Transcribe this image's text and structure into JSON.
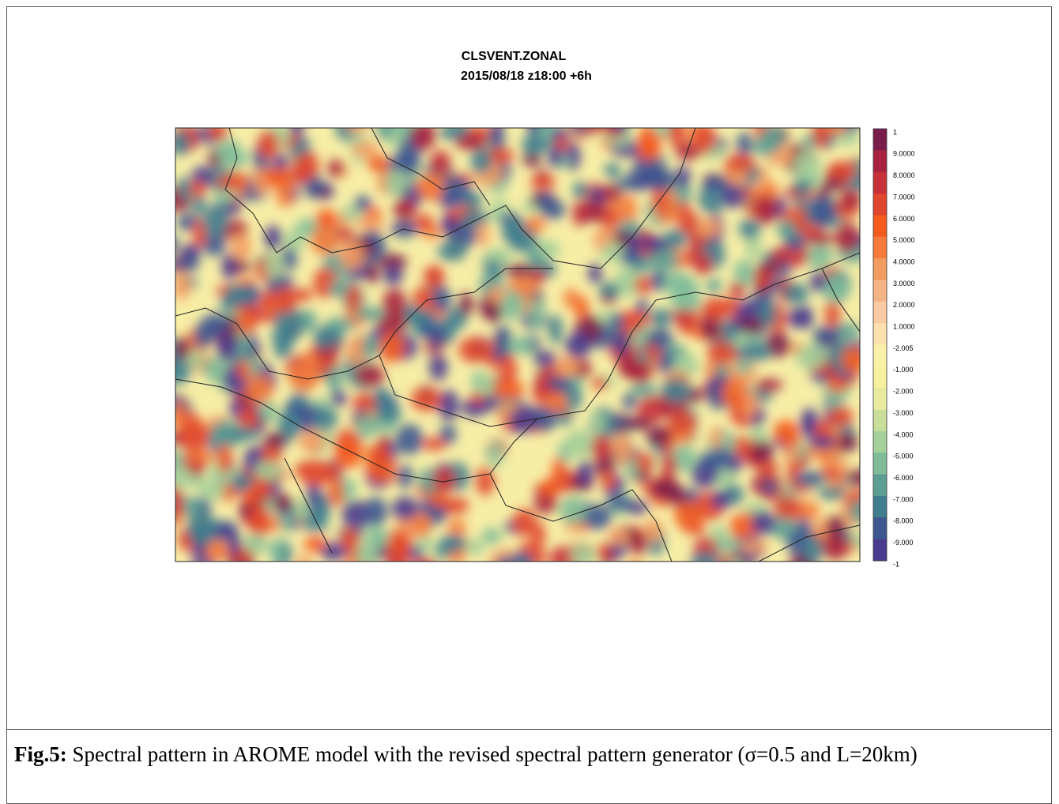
{
  "figure": {
    "title": "CLSVENT.ZONAL",
    "subtitle": "2015/08/18 z18:00 +6h",
    "colorbar": {
      "labels": [
        "1",
        "9.0000",
        "8.0000",
        "7.0000",
        "6.0000",
        "5.0000",
        "4.0000",
        "3.0000",
        "2.0000",
        "1.0000",
        "-2.005",
        "-1.000",
        "-2.000",
        "-3.000",
        "-4.000",
        "-5.000",
        "-6.000",
        "-7.000",
        "-8.000",
        "-9.000",
        "-1"
      ],
      "colors": [
        "#7b1d4b",
        "#a8223f",
        "#c8303a",
        "#e0462d",
        "#f45b1f",
        "#f47b3c",
        "#f39c62",
        "#f5b485",
        "#f8cba2",
        "#fce1ae",
        "#fbf0a8",
        "#f5f1a0",
        "#e6eb9e",
        "#c9de9a",
        "#a5cf99",
        "#7fbc9a",
        "#5c9e94",
        "#3f7d8f",
        "#3d5891",
        "#4a3a8e"
      ]
    }
  },
  "caption": {
    "label": "Fig.5:",
    "text": "Spectral pattern in AROME model with the revised spectral pattern generator (σ=0.5 and L=20km)"
  }
}
